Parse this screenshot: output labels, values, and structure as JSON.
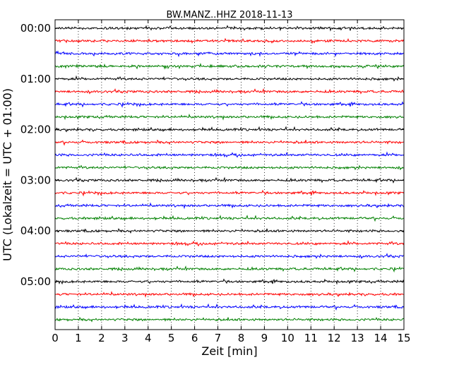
{
  "chart_data": {
    "type": "line",
    "title": "BW.MANZ..HHZ 2018-11-13",
    "xlabel": "Zeit  [min]",
    "ylabel": "UTC (Lokalzeit = UTC + 01:00)",
    "xlim": [
      0,
      15
    ],
    "ylim": [
      -6.0,
      0.0
    ],
    "x_ticks": [
      0,
      1,
      2,
      3,
      4,
      5,
      6,
      7,
      8,
      9,
      10,
      11,
      12,
      13,
      14,
      15
    ],
    "x_tick_labels": [
      "0",
      "1",
      "2",
      "3",
      "4",
      "5",
      "6",
      "7",
      "8",
      "9",
      "10",
      "11",
      "12",
      "13",
      "14",
      "15"
    ],
    "y_tick_labels": [
      "00:00",
      "01:00",
      "02:00",
      "03:00",
      "04:00",
      "05:00"
    ],
    "y_tick_hours": [
      0,
      1,
      2,
      3,
      4,
      5
    ],
    "grid": "vertical dotted at each minute",
    "trace_colors": [
      "#000000",
      "#ff0000",
      "#0000ff",
      "#008000"
    ],
    "trace_start_hours": [
      0,
      0.25,
      0.5,
      0.75,
      1,
      1.25,
      1.5,
      1.75,
      2,
      2.25,
      2.5,
      2.75,
      3,
      3.25,
      3.5,
      3.75,
      4,
      4.25,
      4.5,
      4.75,
      5,
      5.25,
      5.5,
      5.75
    ],
    "trace_duration_min": 15
  }
}
